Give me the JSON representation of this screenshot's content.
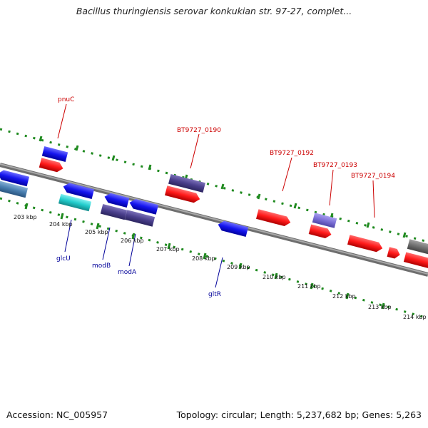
{
  "header": {
    "title": "Bacillus thuringiensis serovar konkukian str. 97-27, complet..."
  },
  "footer": {
    "accession": "Accession: NC_005957",
    "stats": "Topology: circular; Length: 5,237,682 bp; Genes: 5,263"
  },
  "scale": {
    "ticks": [
      {
        "label": "203 kbp"
      },
      {
        "label": "204 kbp"
      },
      {
        "label": "205 kbp"
      },
      {
        "label": "206 kbp"
      },
      {
        "label": "207 kbp"
      },
      {
        "label": "208 kbp"
      },
      {
        "label": "209 kbp"
      },
      {
        "label": "210 kbp"
      },
      {
        "label": "211 kbp"
      },
      {
        "label": "212 kbp"
      },
      {
        "label": "213 kbp"
      },
      {
        "label": "214 kbp"
      }
    ]
  },
  "gene_labels": {
    "pnuC": "pnuC",
    "bt0190": "BT9727_0190",
    "bt0192": "BT9727_0192",
    "bt0193": "BT9727_0193",
    "bt0194": "BT9727_0194",
    "glcU": "glcU",
    "modB": "modB",
    "modA": "modA",
    "gltR": "gltR"
  },
  "colors": {
    "cds_forward": "#ff1a1a",
    "cds_reverse": "#1515ee",
    "transport": "#4a3f8c",
    "light_purple": "#7b6fd6",
    "cyan": "#22cccc",
    "steel_blue": "#4a7fb0",
    "grey": "#707070",
    "backbone": "#8a8a8a",
    "dotted_ring": "#1f8a1f",
    "label_red": "#cc0000",
    "label_blue": "#000099"
  }
}
